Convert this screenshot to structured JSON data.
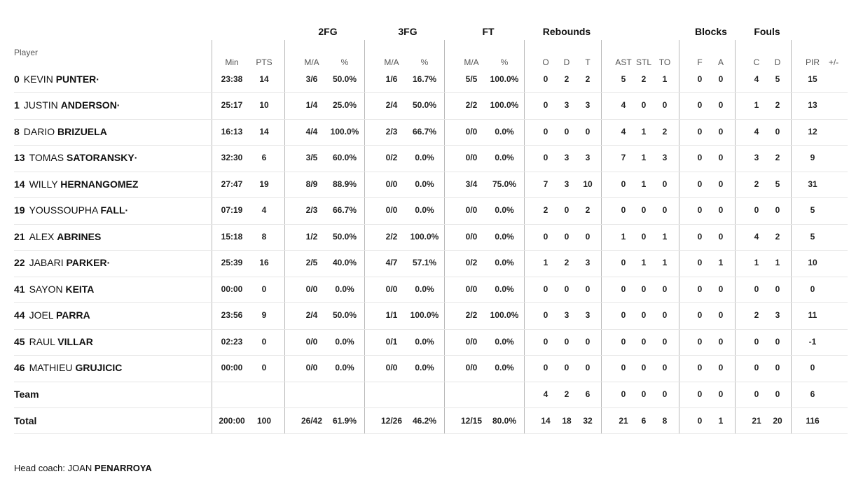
{
  "group_headers": [
    "2FG",
    "3FG",
    "FT",
    "Rebounds",
    "Blocks",
    "Fouls"
  ],
  "player_column_label": "Player",
  "column_headers": [
    "Min",
    "PTS",
    "M/A",
    "%",
    "M/A",
    "%",
    "M/A",
    "%",
    "O",
    "D",
    "T",
    "AST",
    "STL",
    "TO",
    "F",
    "A",
    "C",
    "D",
    "PIR",
    "+/-"
  ],
  "players": [
    {
      "number": "0",
      "first": "KEVIN",
      "last": "PUNTER·",
      "stats": [
        "23:38",
        "14",
        "3/6",
        "50.0%",
        "1/6",
        "16.7%",
        "5/5",
        "100.0%",
        "0",
        "2",
        "2",
        "5",
        "2",
        "1",
        "0",
        "0",
        "4",
        "5",
        "15",
        ""
      ]
    },
    {
      "number": "1",
      "first": "JUSTIN",
      "last": "ANDERSON·",
      "stats": [
        "25:17",
        "10",
        "1/4",
        "25.0%",
        "2/4",
        "50.0%",
        "2/2",
        "100.0%",
        "0",
        "3",
        "3",
        "4",
        "0",
        "0",
        "0",
        "0",
        "1",
        "2",
        "13",
        ""
      ]
    },
    {
      "number": "8",
      "first": "DARIO",
      "last": "BRIZUELA",
      "stats": [
        "16:13",
        "14",
        "4/4",
        "100.0%",
        "2/3",
        "66.7%",
        "0/0",
        "0.0%",
        "0",
        "0",
        "0",
        "4",
        "1",
        "2",
        "0",
        "0",
        "4",
        "0",
        "12",
        ""
      ]
    },
    {
      "number": "13",
      "first": "TOMAS",
      "last": "SATORANSKY·",
      "stats": [
        "32:30",
        "6",
        "3/5",
        "60.0%",
        "0/2",
        "0.0%",
        "0/0",
        "0.0%",
        "0",
        "3",
        "3",
        "7",
        "1",
        "3",
        "0",
        "0",
        "3",
        "2",
        "9",
        ""
      ]
    },
    {
      "number": "14",
      "first": "WILLY",
      "last": "HERNANGOMEZ",
      "stats": [
        "27:47",
        "19",
        "8/9",
        "88.9%",
        "0/0",
        "0.0%",
        "3/4",
        "75.0%",
        "7",
        "3",
        "10",
        "0",
        "1",
        "0",
        "0",
        "0",
        "2",
        "5",
        "31",
        ""
      ]
    },
    {
      "number": "19",
      "first": "YOUSSOUPHA",
      "last": "FALL·",
      "stats": [
        "07:19",
        "4",
        "2/3",
        "66.7%",
        "0/0",
        "0.0%",
        "0/0",
        "0.0%",
        "2",
        "0",
        "2",
        "0",
        "0",
        "0",
        "0",
        "0",
        "0",
        "0",
        "5",
        ""
      ]
    },
    {
      "number": "21",
      "first": "ALEX",
      "last": "ABRINES",
      "stats": [
        "15:18",
        "8",
        "1/2",
        "50.0%",
        "2/2",
        "100.0%",
        "0/0",
        "0.0%",
        "0",
        "0",
        "0",
        "1",
        "0",
        "1",
        "0",
        "0",
        "4",
        "2",
        "5",
        ""
      ]
    },
    {
      "number": "22",
      "first": "JABARI",
      "last": "PARKER·",
      "stats": [
        "25:39",
        "16",
        "2/5",
        "40.0%",
        "4/7",
        "57.1%",
        "0/2",
        "0.0%",
        "1",
        "2",
        "3",
        "0",
        "1",
        "1",
        "0",
        "1",
        "1",
        "1",
        "10",
        ""
      ]
    },
    {
      "number": "41",
      "first": "SAYON",
      "last": "KEITA",
      "stats": [
        "00:00",
        "0",
        "0/0",
        "0.0%",
        "0/0",
        "0.0%",
        "0/0",
        "0.0%",
        "0",
        "0",
        "0",
        "0",
        "0",
        "0",
        "0",
        "0",
        "0",
        "0",
        "0",
        ""
      ]
    },
    {
      "number": "44",
      "first": "JOEL",
      "last": "PARRA",
      "stats": [
        "23:56",
        "9",
        "2/4",
        "50.0%",
        "1/1",
        "100.0%",
        "2/2",
        "100.0%",
        "0",
        "3",
        "3",
        "0",
        "0",
        "0",
        "0",
        "0",
        "2",
        "3",
        "11",
        ""
      ]
    },
    {
      "number": "45",
      "first": "RAUL",
      "last": "VILLAR",
      "stats": [
        "02:23",
        "0",
        "0/0",
        "0.0%",
        "0/1",
        "0.0%",
        "0/0",
        "0.0%",
        "0",
        "0",
        "0",
        "0",
        "0",
        "0",
        "0",
        "0",
        "0",
        "0",
        "-1",
        ""
      ]
    },
    {
      "number": "46",
      "first": "MATHIEU",
      "last": "GRUJICIC",
      "stats": [
        "00:00",
        "0",
        "0/0",
        "0.0%",
        "0/0",
        "0.0%",
        "0/0",
        "0.0%",
        "0",
        "0",
        "0",
        "0",
        "0",
        "0",
        "0",
        "0",
        "0",
        "0",
        "0",
        ""
      ]
    }
  ],
  "team_row": {
    "label": "Team",
    "stats": [
      "",
      "",
      "",
      "",
      "",
      "",
      "",
      "",
      "4",
      "2",
      "6",
      "0",
      "0",
      "0",
      "0",
      "0",
      "0",
      "0",
      "6",
      ""
    ]
  },
  "total_row": {
    "label": "Total",
    "stats": [
      "200:00",
      "100",
      "26/42",
      "61.9%",
      "12/26",
      "46.2%",
      "12/15",
      "80.0%",
      "14",
      "18",
      "32",
      "21",
      "6",
      "8",
      "0",
      "1",
      "21",
      "20",
      "116",
      ""
    ]
  },
  "coach": {
    "prefix": "Head coach: ",
    "first": "JOAN",
    "last": "PENARROYA"
  }
}
